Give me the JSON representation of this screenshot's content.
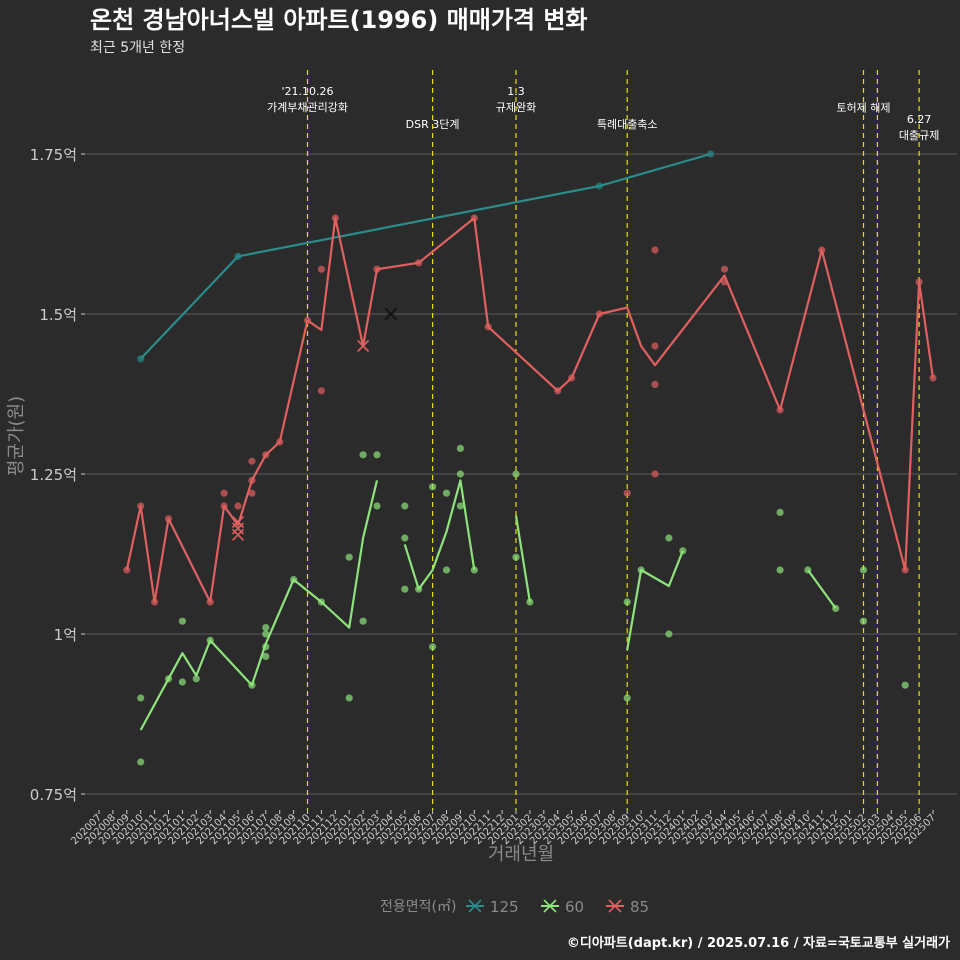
{
  "title": "온천 경남아너스빌 아파트(1996) 매매가격 변화",
  "subtitle": "최근 5개년 한정",
  "footer": "©디아파트(dapt.kr) / 2025.07.16 / 자료=국토교통부 실거래가",
  "colors": {
    "background": "#2b2b2b",
    "grid": "#5a5a5a",
    "axis_text": "#cccccc",
    "axis_title": "#8a8a8a",
    "title_text": "#ffffff",
    "event_line": "#e8e000",
    "series_125": "#2a8c8c",
    "series_60": "#8fe37c",
    "series_85": "#e06060"
  },
  "chart_data": {
    "type": "line",
    "xlabel": "거래년월",
    "ylabel": "평균가(원)",
    "ylim": [
      0.75,
      1.875
    ],
    "y_ticks": [
      {
        "value": 0.75,
        "label": "0.75억"
      },
      {
        "value": 1.0,
        "label": "1억"
      },
      {
        "value": 1.25,
        "label": "1.25억"
      },
      {
        "value": 1.5,
        "label": "1.5억"
      },
      {
        "value": 1.75,
        "label": "1.75억"
      }
    ],
    "x_labels": [
      "202007",
      "202008",
      "202009",
      "202010",
      "202011",
      "202012",
      "202101",
      "202102",
      "202103",
      "202104",
      "202105",
      "202106",
      "202107",
      "202108",
      "202109",
      "202110",
      "202111",
      "202112",
      "202201",
      "202202",
      "202203",
      "202204",
      "202205",
      "202206",
      "202207",
      "202208",
      "202209",
      "202210",
      "202211",
      "202212",
      "202301",
      "202302",
      "202303",
      "202304",
      "202305",
      "202306",
      "202307",
      "202308",
      "202309",
      "202310",
      "202311",
      "202312",
      "202401",
      "202402",
      "202403",
      "202404",
      "202405",
      "202406",
      "202407",
      "202408",
      "202409",
      "202410",
      "202411",
      "202412",
      "202501",
      "202502",
      "202503",
      "202504",
      "202505",
      "202506",
      "202507"
    ],
    "events": [
      {
        "x": 15.0,
        "lines": [
          "'21.10.26",
          "가계부채관리강화"
        ],
        "row": 0
      },
      {
        "x": 24.0,
        "lines": [
          "DSR 3단계"
        ],
        "row": 2
      },
      {
        "x": 30.0,
        "lines": [
          "1.3",
          "규제완화"
        ],
        "row": 0
      },
      {
        "x": 38.0,
        "lines": [
          "특례대출축소"
        ],
        "row": 2
      },
      {
        "x": 55.0,
        "lines": [
          "토허제 해제"
        ],
        "row": 1
      },
      {
        "x": 56.0,
        "lines": [],
        "row": 0
      },
      {
        "x": 59.0,
        "lines": [
          "6.27",
          "대출규제"
        ],
        "row": 1.7
      }
    ],
    "legend": {
      "title": "전용면적(㎡)",
      "position": "bottom",
      "items": [
        "125",
        "60",
        "85"
      ]
    },
    "series": [
      {
        "name": "125",
        "color_key": "series_125",
        "line": [
          [
            3,
            1.43
          ],
          [
            10,
            1.59
          ],
          [
            36,
            1.7
          ],
          [
            44,
            1.75
          ]
        ],
        "points": [
          [
            3,
            1.43
          ],
          [
            10,
            1.59
          ],
          [
            36,
            1.7
          ],
          [
            44,
            1.75
          ]
        ],
        "crosses": []
      },
      {
        "name": "60",
        "color_key": "series_60",
        "line": [
          [
            [
              3,
              0.85
            ],
            [
              5,
              0.93
            ],
            [
              6,
              0.97
            ],
            [
              7,
              0.935
            ],
            [
              8,
              0.99
            ],
            [
              11,
              0.92
            ],
            [
              12,
              0.985
            ],
            [
              14,
              1.085
            ],
            [
              16,
              1.05
            ],
            [
              18,
              1.01
            ],
            [
              19,
              1.15
            ],
            [
              20,
              1.24
            ]
          ],
          [
            [
              22,
              1.14
            ],
            [
              23,
              1.07
            ],
            [
              24,
              1.1
            ],
            [
              25,
              1.16
            ],
            [
              26,
              1.24
            ],
            [
              27,
              1.1
            ]
          ],
          [
            [
              30,
              1.185
            ],
            [
              31,
              1.05
            ]
          ],
          [
            [
              38,
              0.975
            ],
            [
              39,
              1.1
            ],
            [
              41,
              1.075
            ],
            [
              42,
              1.13
            ]
          ],
          [
            [
              51,
              1.1
            ],
            [
              53,
              1.04
            ]
          ]
        ],
        "points": [
          [
            3,
            0.9
          ],
          [
            3,
            0.8
          ],
          [
            5,
            0.93
          ],
          [
            6,
            1.02
          ],
          [
            6,
            0.925
          ],
          [
            7,
            0.93
          ],
          [
            8,
            0.99
          ],
          [
            11,
            0.92
          ],
          [
            12,
            1.01
          ],
          [
            12,
            1.0
          ],
          [
            12,
            0.98
          ],
          [
            12,
            0.965
          ],
          [
            14,
            1.085
          ],
          [
            16,
            1.05
          ],
          [
            18,
            1.12
          ],
          [
            18,
            0.9
          ],
          [
            19,
            1.28
          ],
          [
            19,
            1.02
          ],
          [
            20,
            1.28
          ],
          [
            20,
            1.2
          ],
          [
            22,
            1.2
          ],
          [
            22,
            1.15
          ],
          [
            22,
            1.07
          ],
          [
            23,
            1.07
          ],
          [
            24,
            1.23
          ],
          [
            24,
            0.98
          ],
          [
            25,
            1.22
          ],
          [
            25,
            1.1
          ],
          [
            26,
            1.29
          ],
          [
            26,
            1.25
          ],
          [
            26,
            1.2
          ],
          [
            27,
            1.1
          ],
          [
            30,
            1.25
          ],
          [
            30,
            1.12
          ],
          [
            31,
            1.05
          ],
          [
            38,
            1.05
          ],
          [
            38,
            0.9
          ],
          [
            39,
            1.1
          ],
          [
            41,
            1.15
          ],
          [
            41,
            1.0
          ],
          [
            42,
            1.13
          ],
          [
            49,
            1.19
          ],
          [
            49,
            1.1
          ],
          [
            51,
            1.1
          ],
          [
            53,
            1.04
          ],
          [
            55,
            1.1
          ],
          [
            55,
            1.02
          ],
          [
            58,
            0.92
          ]
        ],
        "crosses": []
      },
      {
        "name": "85",
        "color_key": "series_85",
        "line": [
          [
            [
              2,
              1.1
            ],
            [
              3,
              1.2
            ],
            [
              4,
              1.05
            ],
            [
              5,
              1.18
            ],
            [
              8,
              1.05
            ],
            [
              9,
              1.2
            ],
            [
              10,
              1.17
            ],
            [
              11,
              1.24
            ],
            [
              12,
              1.28
            ],
            [
              13,
              1.3
            ],
            [
              15,
              1.49
            ],
            [
              16,
              1.475
            ],
            [
              17,
              1.65
            ],
            [
              19,
              1.45
            ],
            [
              20,
              1.57
            ],
            [
              23,
              1.58
            ],
            [
              27,
              1.65
            ],
            [
              28,
              1.48
            ],
            [
              33,
              1.38
            ],
            [
              34,
              1.4
            ],
            [
              36,
              1.5
            ],
            [
              38,
              1.51
            ],
            [
              39,
              1.45
            ],
            [
              40,
              1.42
            ],
            [
              45,
              1.56
            ],
            [
              49,
              1.35
            ],
            [
              52,
              1.6
            ],
            [
              58,
              1.1
            ],
            [
              59,
              1.55
            ],
            [
              60,
              1.4
            ]
          ]
        ],
        "points": [
          [
            2,
            1.1
          ],
          [
            3,
            1.2
          ],
          [
            4,
            1.05
          ],
          [
            5,
            1.18
          ],
          [
            8,
            1.05
          ],
          [
            9,
            1.22
          ],
          [
            9,
            1.2
          ],
          [
            10,
            1.2
          ],
          [
            11,
            1.27
          ],
          [
            11,
            1.24
          ],
          [
            11,
            1.22
          ],
          [
            12,
            1.28
          ],
          [
            13,
            1.3
          ],
          [
            15,
            1.49
          ],
          [
            16,
            1.57
          ],
          [
            16,
            1.38
          ],
          [
            17,
            1.65
          ],
          [
            20,
            1.57
          ],
          [
            23,
            1.58
          ],
          [
            27,
            1.65
          ],
          [
            28,
            1.48
          ],
          [
            33,
            1.38
          ],
          [
            34,
            1.4
          ],
          [
            36,
            1.5
          ],
          [
            38,
            1.22
          ],
          [
            40,
            1.6
          ],
          [
            40,
            1.45
          ],
          [
            40,
            1.39
          ],
          [
            40,
            1.25
          ],
          [
            45,
            1.57
          ],
          [
            45,
            1.55
          ],
          [
            49,
            1.35
          ],
          [
            52,
            1.6
          ],
          [
            58,
            1.1
          ],
          [
            59,
            1.55
          ],
          [
            60,
            1.4
          ]
        ],
        "crosses": [
          [
            10,
            1.175
          ],
          [
            10,
            1.165
          ],
          [
            10,
            1.155
          ],
          [
            19,
            1.45
          ]
        ]
      }
    ],
    "black_crosses": [
      [
        21,
        1.5
      ]
    ]
  }
}
